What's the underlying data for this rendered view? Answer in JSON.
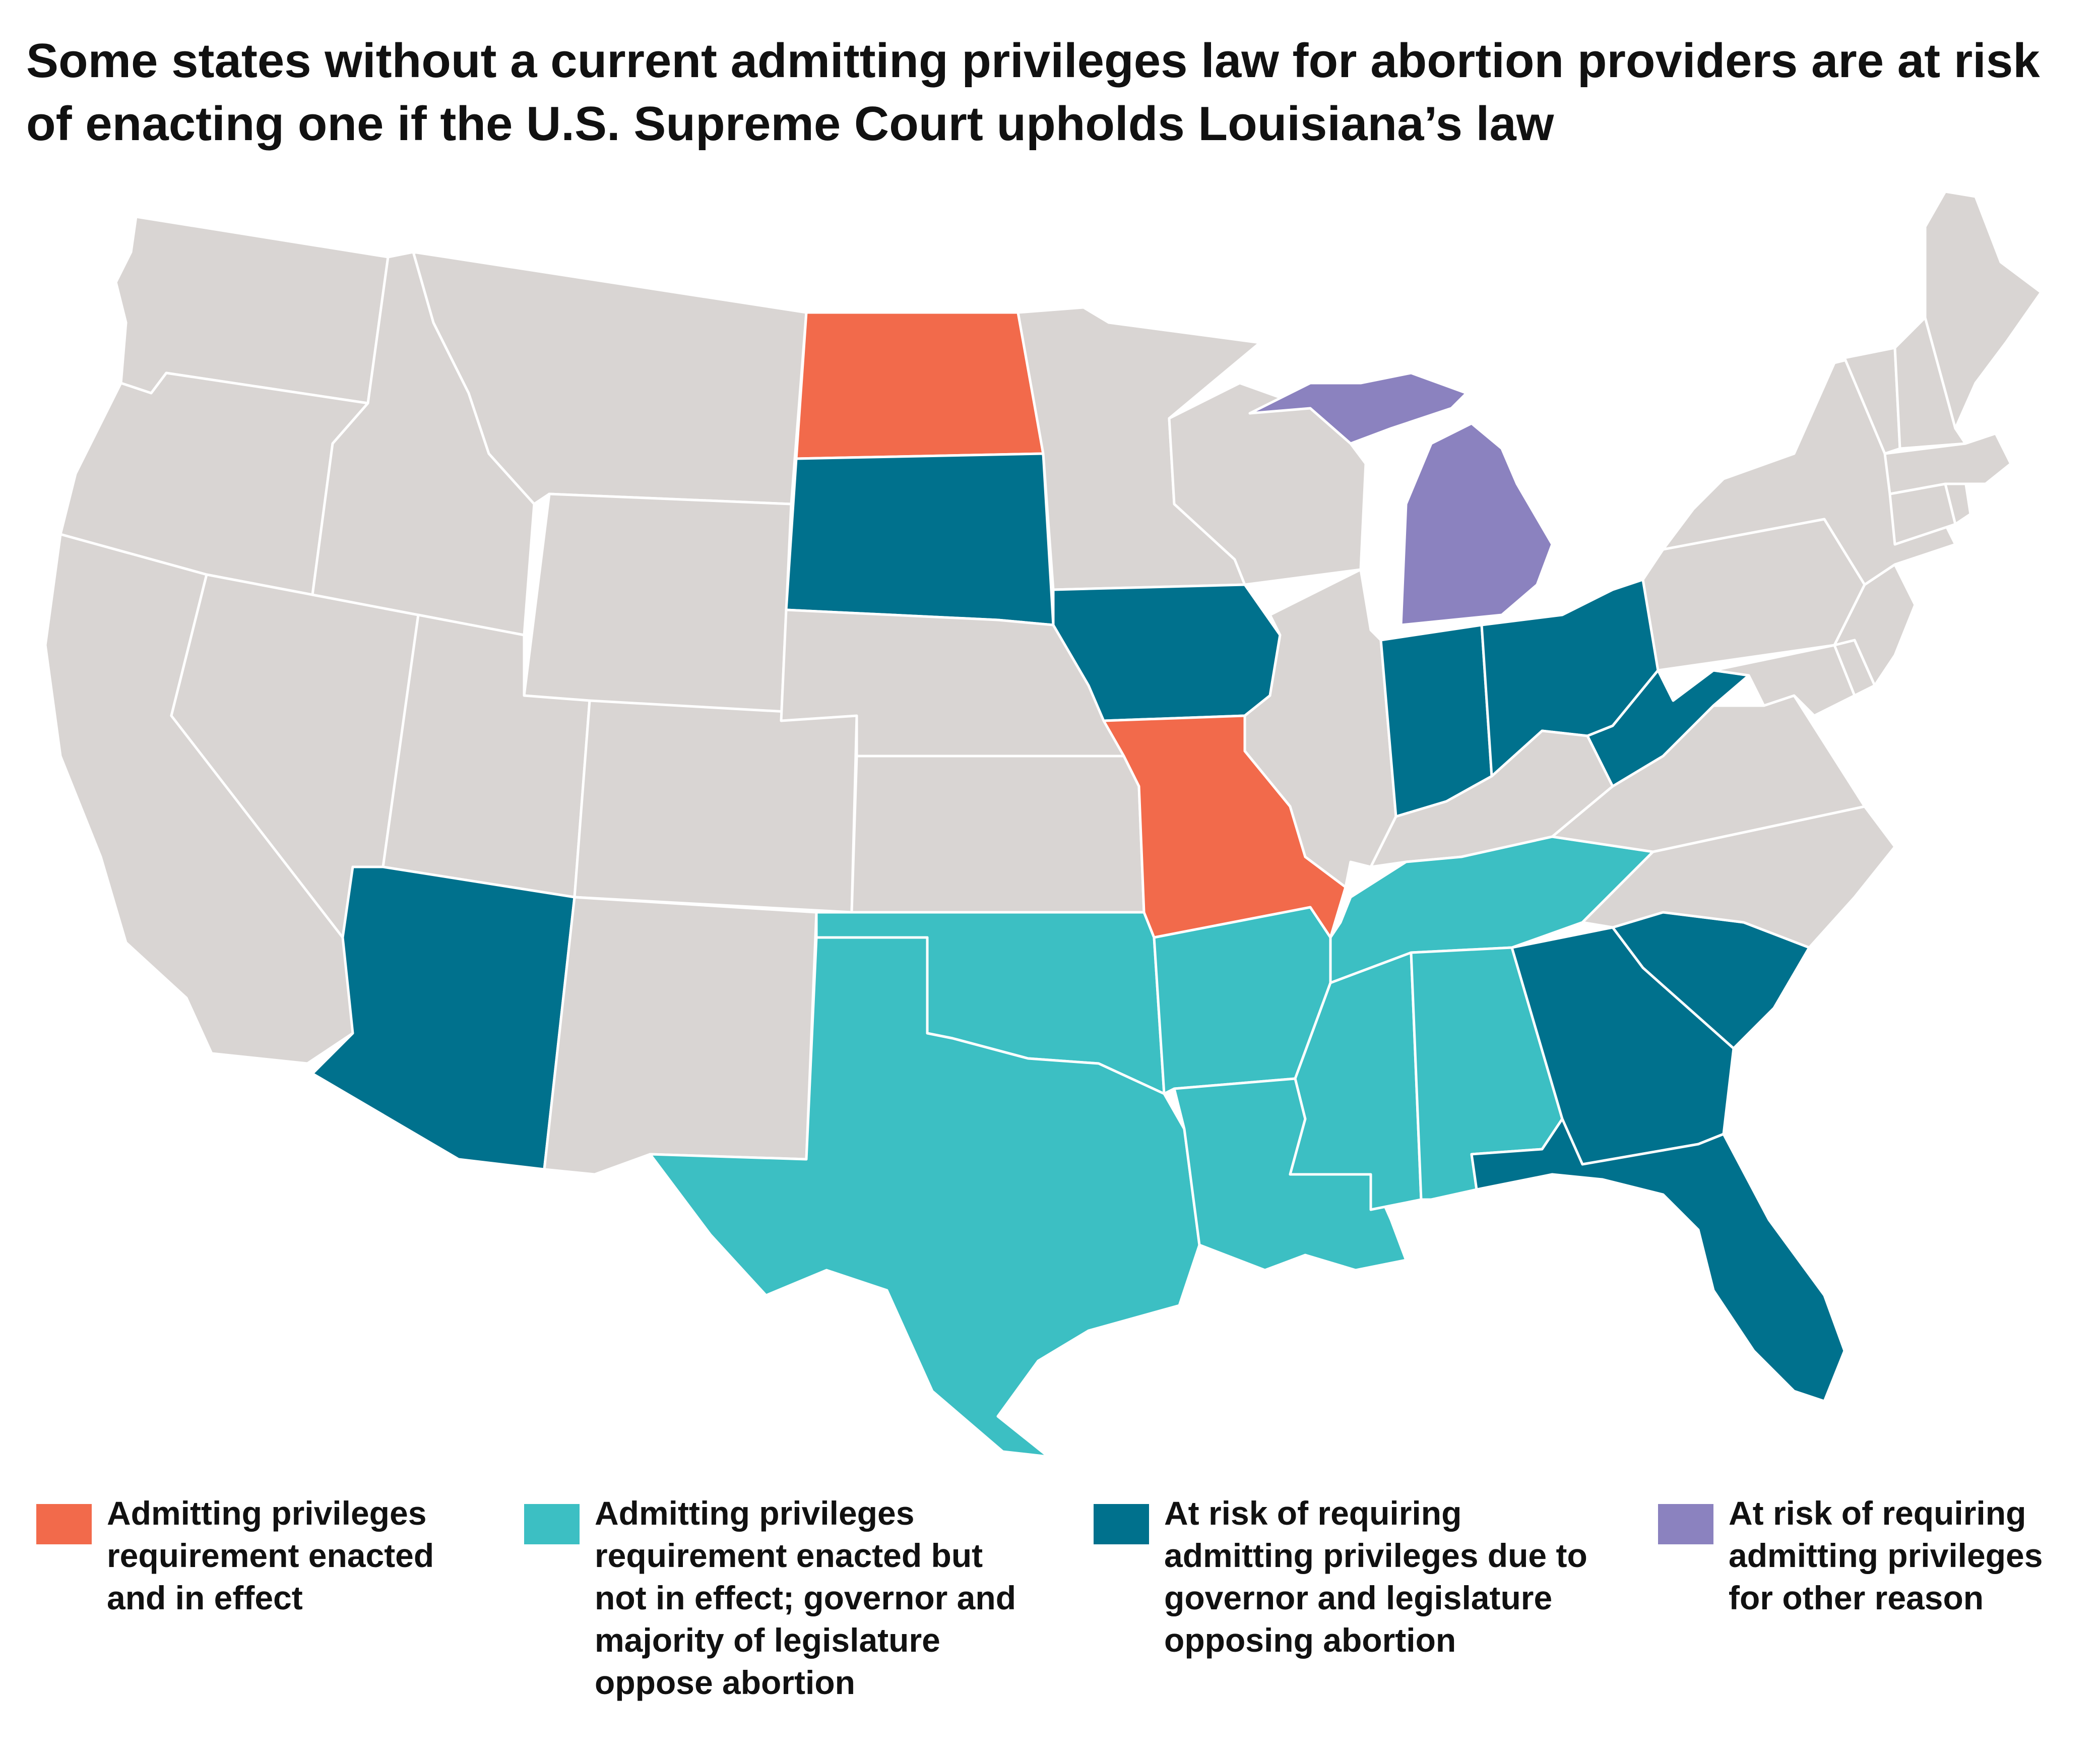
{
  "title": "Some states without a current admitting privileges law for abortion providers are at risk of enacting one if the U.S. Supreme Court upholds Louisiana’s law",
  "colors": {
    "default": "#d9d5d3",
    "enacted_in_effect": "#f26a4b",
    "enacted_not_in_effect": "#3cbfc3",
    "at_risk_gov_leg": "#00718d",
    "at_risk_other": "#8b82bf"
  },
  "legend": [
    {
      "key": "enacted_in_effect",
      "label": "Admitting privileges\nrequirement enacted\nand in effect"
    },
    {
      "key": "enacted_not_in_effect",
      "label": "Admitting privileges\nrequirement enacted but\nnot in effect; governor and\nmajority of legislature\noppose abortion"
    },
    {
      "key": "at_risk_gov_leg",
      "label": "At risk of requiring\nadmitting privileges due to\ngovernor and legislature\nopposing abortion"
    },
    {
      "key": "at_risk_other",
      "label": "At risk of requiring\nadmitting privileges\nfor other reason"
    }
  ],
  "states": [
    {
      "name": "WA",
      "category": "default"
    },
    {
      "name": "OR",
      "category": "default"
    },
    {
      "name": "CA",
      "category": "default"
    },
    {
      "name": "NV",
      "category": "default"
    },
    {
      "name": "ID",
      "category": "default"
    },
    {
      "name": "MT",
      "category": "default"
    },
    {
      "name": "WY",
      "category": "default"
    },
    {
      "name": "UT",
      "category": "default"
    },
    {
      "name": "CO",
      "category": "default"
    },
    {
      "name": "AZ",
      "category": "at_risk_gov_leg"
    },
    {
      "name": "NM",
      "category": "default"
    },
    {
      "name": "ND",
      "category": "enacted_in_effect"
    },
    {
      "name": "SD",
      "category": "at_risk_gov_leg"
    },
    {
      "name": "NE",
      "category": "default"
    },
    {
      "name": "KS",
      "category": "default"
    },
    {
      "name": "OK",
      "category": "enacted_not_in_effect"
    },
    {
      "name": "TX",
      "category": "enacted_not_in_effect"
    },
    {
      "name": "MN",
      "category": "default"
    },
    {
      "name": "IA",
      "category": "at_risk_gov_leg"
    },
    {
      "name": "MO",
      "category": "enacted_in_effect"
    },
    {
      "name": "AR",
      "category": "enacted_not_in_effect"
    },
    {
      "name": "LA",
      "category": "enacted_not_in_effect"
    },
    {
      "name": "WI",
      "category": "default"
    },
    {
      "name": "IL",
      "category": "default"
    },
    {
      "name": "MI",
      "category": "at_risk_other"
    },
    {
      "name": "IN",
      "category": "at_risk_gov_leg"
    },
    {
      "name": "OH",
      "category": "at_risk_gov_leg"
    },
    {
      "name": "KY",
      "category": "default"
    },
    {
      "name": "TN",
      "category": "enacted_not_in_effect"
    },
    {
      "name": "MS",
      "category": "enacted_not_in_effect"
    },
    {
      "name": "AL",
      "category": "enacted_not_in_effect"
    },
    {
      "name": "GA",
      "category": "at_risk_gov_leg"
    },
    {
      "name": "FL",
      "category": "at_risk_gov_leg"
    },
    {
      "name": "SC",
      "category": "at_risk_gov_leg"
    },
    {
      "name": "NC",
      "category": "default"
    },
    {
      "name": "VA",
      "category": "default"
    },
    {
      "name": "WV",
      "category": "at_risk_gov_leg"
    },
    {
      "name": "PA",
      "category": "default"
    },
    {
      "name": "NY",
      "category": "default"
    },
    {
      "name": "MD",
      "category": "default"
    },
    {
      "name": "DE",
      "category": "default"
    },
    {
      "name": "NJ",
      "category": "default"
    },
    {
      "name": "CT",
      "category": "default"
    },
    {
      "name": "RI",
      "category": "default"
    },
    {
      "name": "MA",
      "category": "default"
    },
    {
      "name": "VT",
      "category": "default"
    },
    {
      "name": "NH",
      "category": "default"
    },
    {
      "name": "ME",
      "category": "default"
    }
  ]
}
